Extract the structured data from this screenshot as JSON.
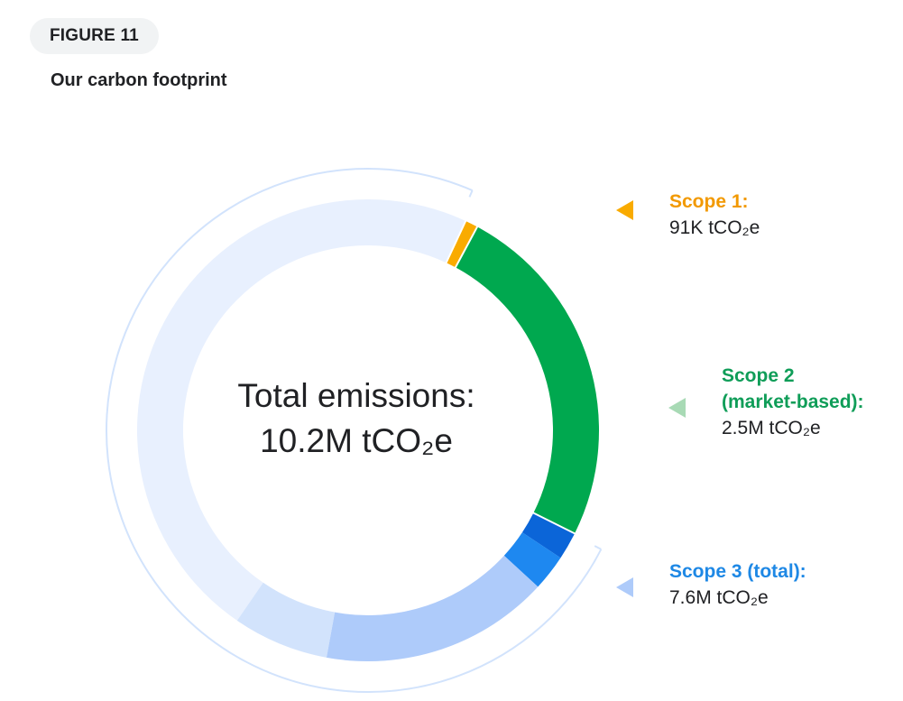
{
  "figure_label": "FIGURE 11",
  "title": "Our carbon footprint",
  "center": {
    "title": "Total emissions:",
    "value": "10.2M tCO₂e"
  },
  "legend": [
    {
      "label": "Scope 1:",
      "value": "91K tCO₂e",
      "color": "#f29900",
      "marker_color": "#f9ab00"
    },
    {
      "label": "Scope 2 (market-based):",
      "label_lines": [
        "Scope 2",
        "(market-based):"
      ],
      "value": "2.5M tCO₂e",
      "color": "#0f9d58",
      "marker_color": "#a8dab5"
    },
    {
      "label": "Scope 3 (total):",
      "value": "7.6M tCO₂e",
      "color": "#1e88e5",
      "marker_color": "#aecbfa"
    }
  ],
  "chart_data": {
    "type": "pie",
    "title": "Our carbon footprint",
    "unit": "tCO2e",
    "total": 10200000,
    "slices": [
      {
        "name": "Scope 1",
        "value": 91000,
        "color": "#f9ab00"
      },
      {
        "name": "Scope 2 (market-based)",
        "value": 2500000,
        "color": "#00a84f"
      },
      {
        "name": "Scope 3 (total)",
        "value": 7600000,
        "color": "#e8f0fe"
      }
    ],
    "scope3_breakdown_colors": [
      "#0b65d8",
      "#1e88f0",
      "#aecbfa",
      "#d2e3fc",
      "#e8f0fe"
    ]
  }
}
